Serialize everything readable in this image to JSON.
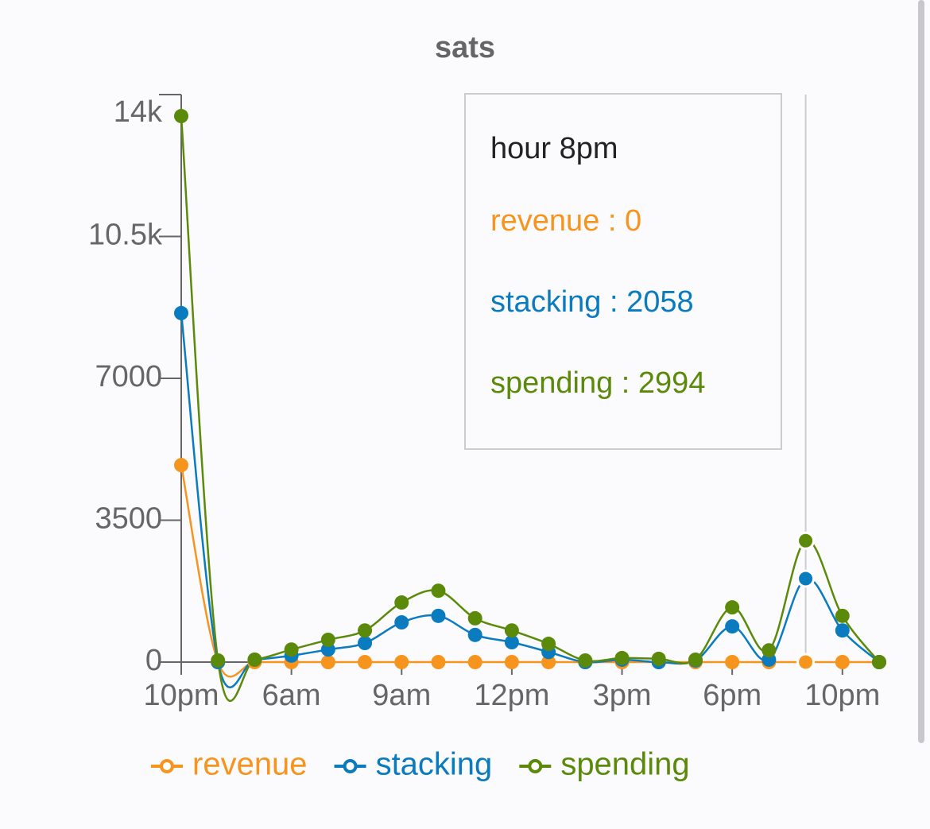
{
  "chart_data": {
    "type": "line",
    "title": "sats",
    "categories": [
      "10pm",
      null,
      null,
      "6am",
      null,
      null,
      "9am",
      null,
      null,
      "12pm",
      null,
      null,
      "3pm",
      null,
      null,
      "6pm",
      null,
      null,
      "10pm",
      null
    ],
    "series": [
      {
        "name": "revenue",
        "color": "#f7941d",
        "values": [
          4860,
          0,
          0,
          0,
          0,
          0,
          0,
          0,
          0,
          0,
          0,
          0,
          0,
          0,
          0,
          0,
          0,
          0,
          0,
          0
        ]
      },
      {
        "name": "stacking",
        "color": "#0a7bbf",
        "values": [
          8610,
          0,
          60,
          160,
          310,
          470,
          980,
          1140,
          670,
          490,
          250,
          0,
          60,
          0,
          40,
          880,
          60,
          2058,
          780,
          0
        ]
      },
      {
        "name": "spending",
        "color": "#5b8a0a",
        "values": [
          13470,
          40,
          60,
          310,
          550,
          780,
          1470,
          1760,
          1080,
          780,
          450,
          40,
          100,
          80,
          60,
          1350,
          290,
          2994,
          1140,
          0
        ]
      }
    ],
    "ylim": [
      0,
      14000
    ],
    "yticks": [
      0,
      3500,
      7000,
      {
        "value": 10500,
        "label": "10.5k"
      },
      {
        "value": 14000,
        "label": "14k"
      }
    ],
    "tooltip": {
      "title": "hour 8pm",
      "lines": [
        "revenue : 0",
        "stacking : 2058",
        "spending : 2994"
      ]
    },
    "legend": "bottom"
  }
}
